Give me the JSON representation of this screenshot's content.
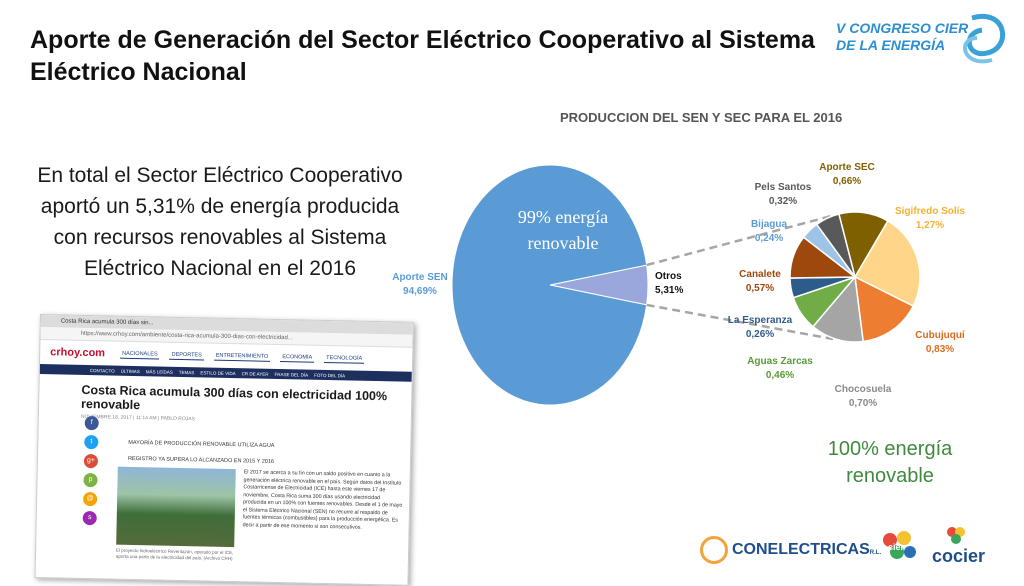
{
  "slide": {
    "title": "Aporte de Generación del Sector Eléctrico Cooperativo al Sistema Eléctrico Nacional",
    "summary": "En total el Sector Eléctrico Cooperativo aportó un 5,31% de energía producida con recursos renovables al Sistema Eléctrico Nacional en el 2016",
    "green_note": "100% energía renovable",
    "congreso_logo_line1": "V CONGRESO CIER",
    "congreso_logo_line2": "DE LA ENERGÍA",
    "footer_logos": {
      "conelectricas": "CONELECTRICAS",
      "conelectricas_suffix": "R.L.",
      "cier": "cier",
      "cocier": "cocier"
    }
  },
  "colors": {
    "sen": "#5b9bd5",
    "otros": "#9aa7dc",
    "connector": "#a6a6a6"
  },
  "chart_data": {
    "type": "pie",
    "title": "PRODUCCION DEL SEN Y SEC PARA EL 2016",
    "main_pie": {
      "slices": [
        {
          "label": "Aporte SEN",
          "value": 94.69,
          "display": "94,69%",
          "color": "#5b9bd5"
        },
        {
          "label": "Otros",
          "value": 5.31,
          "display": "5,31%",
          "color": "#9aa7dc"
        }
      ],
      "inner_annotation_line1": "99% energía",
      "inner_annotation_line2": "renovable"
    },
    "breakdown_pie": {
      "of": "Otros",
      "slices": [
        {
          "label": "Aporte SEC",
          "value": 0.66,
          "display": "0,66%",
          "color": "#7f6000",
          "label_color": "#806000"
        },
        {
          "label": "Sigifredo Solís",
          "value": 1.27,
          "display": "1,27%",
          "color": "#ffd58a",
          "label_color": "#f2b233"
        },
        {
          "label": "Cubujuquí",
          "value": 0.83,
          "display": "0,83%",
          "color": "#ed7d31",
          "label_color": "#d96b1e"
        },
        {
          "label": "Chocosuela",
          "value": 0.7,
          "display": "0,70%",
          "color": "#a5a5a5",
          "label_color": "#8a8a8a"
        },
        {
          "label": "Aguas Zarcas",
          "value": 0.46,
          "display": "0,46%",
          "color": "#70ad47",
          "label_color": "#5a9a36"
        },
        {
          "label": "La Esperanza",
          "value": 0.26,
          "display": "0,26%",
          "color": "#2e5c8a",
          "label_color": "#2e5c8a"
        },
        {
          "label": "Canalete",
          "value": 0.57,
          "display": "0,57%",
          "color": "#9e480e",
          "label_color": "#9e480e"
        },
        {
          "label": "Bijagua",
          "value": 0.24,
          "display": "0,24%",
          "color": "#9dc3e6",
          "label_color": "#5b9bd5"
        },
        {
          "label": "Pels Santos",
          "value": 0.32,
          "display": "0,32%",
          "color": "#595959",
          "label_color": "#595959"
        }
      ]
    }
  },
  "article": {
    "tab_title": "Costa Rica acumula 300 días sin...",
    "address": "https://www.crhoy.com/ambiente/costa-rica-acumula-300-dias-con-electricidad...",
    "site_logo": "crhoy.com",
    "nav": [
      "NACIONALES",
      "DEPORTES",
      "ENTRETENIMIENTO",
      "ECONOMÍA",
      "TECNOLOGÍA"
    ],
    "subnav": [
      "CONTACTO",
      "ÚLTIMAS",
      "MÁS LEÍDAS",
      "TEMAS",
      "ESTILO DE VIDA",
      "CR DE AYER",
      "FRASE DEL DÍA",
      "FOTO DEL DÍA"
    ],
    "headline": "Costa Rica acumula 300 días con electricidad 100% renovable",
    "byline": "NOVIEMBRE 18, 2017 | 11:14 AM | PABLO ROJAS",
    "bullets": [
      "MAYORÍA DE PRODUCCIÓN RENOVABLE UTILIZA AGUA",
      "REGISTRO YA SUPERA LO ALCANZADO EN 2015 Y 2016"
    ],
    "share_icons": [
      "f",
      "t",
      "g+",
      "p",
      "@",
      "s"
    ],
    "caption": "El proyecto hidroeléctrico Reventazón, operado por el ICE, aporta una parte de la electricidad del país. (Archivo CRH)",
    "body": "El 2017 se acerca a su fin con un saldo positivo en cuanto a la generación eléctrica renovable en el país. Según datos del Instituto Costarricense de Electricidad (ICE) hasta este viernes 17 de noviembre, Costa Rica suma 300 días usando electricidad producida en un 100% con fuentes renovables. Desde el 1 de mayo el Sistema Eléctrico Nacional (SEN) no recurre al respaldo de fuentes térmicas (combustibles) para la producción energética. Es decir a partir de ese momento si son consecutivos."
  }
}
